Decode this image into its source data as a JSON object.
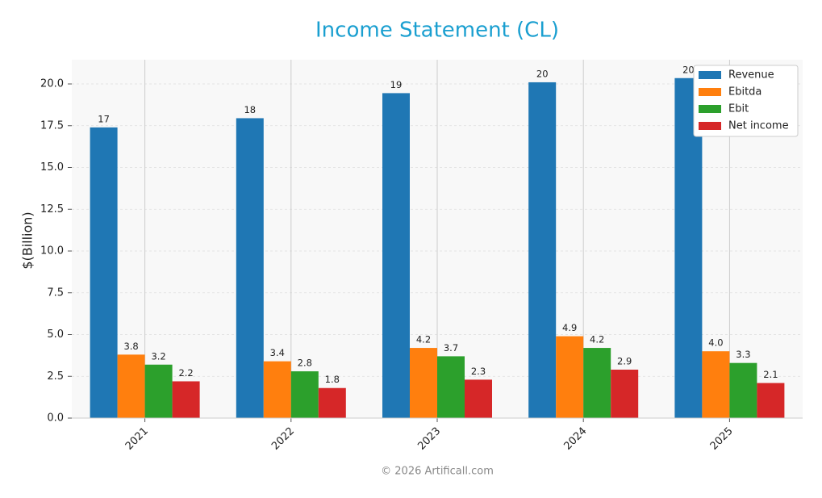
{
  "chart_data": {
    "type": "bar",
    "title": "Income Statement (CL)",
    "y_label": "$(Billion)",
    "footer": "© 2026 Artificall.com",
    "categories": [
      "2021",
      "2022",
      "2023",
      "2024",
      "2025"
    ],
    "series": [
      {
        "name": "Revenue",
        "color": "#1f77b4",
        "values": [
          17.4,
          17.95,
          19.45,
          20.1,
          20.35
        ],
        "value_labels": [
          "17",
          "18",
          "19",
          "20",
          "20"
        ]
      },
      {
        "name": "Ebitda",
        "color": "#ff7f0e",
        "values": [
          3.8,
          3.4,
          4.2,
          4.9,
          4.0
        ],
        "value_labels": [
          "3.8",
          "3.4",
          "4.2",
          "4.9",
          "4.0"
        ]
      },
      {
        "name": "Ebit",
        "color": "#2ca02c",
        "values": [
          3.2,
          2.8,
          3.7,
          4.2,
          3.3
        ],
        "value_labels": [
          "3.2",
          "2.8",
          "3.7",
          "4.2",
          "3.3"
        ]
      },
      {
        "name": "Net income",
        "color": "#d62728",
        "values": [
          2.2,
          1.8,
          2.3,
          2.9,
          2.1
        ],
        "value_labels": [
          "2.2",
          "1.8",
          "2.3",
          "2.9",
          "2.1"
        ]
      }
    ],
    "ylim": [
      0,
      21.45
    ],
    "yticks": [
      {
        "value": 0,
        "label": "0.0"
      },
      2.5,
      {
        "value": 5,
        "label": "5.0"
      },
      7.5,
      {
        "value": 10,
        "label": "10.0"
      },
      12.5,
      {
        "value": 15,
        "label": "15.0"
      },
      17.5,
      {
        "value": 20,
        "label": "20.0"
      }
    ],
    "grid": true,
    "legend": "upper right"
  }
}
